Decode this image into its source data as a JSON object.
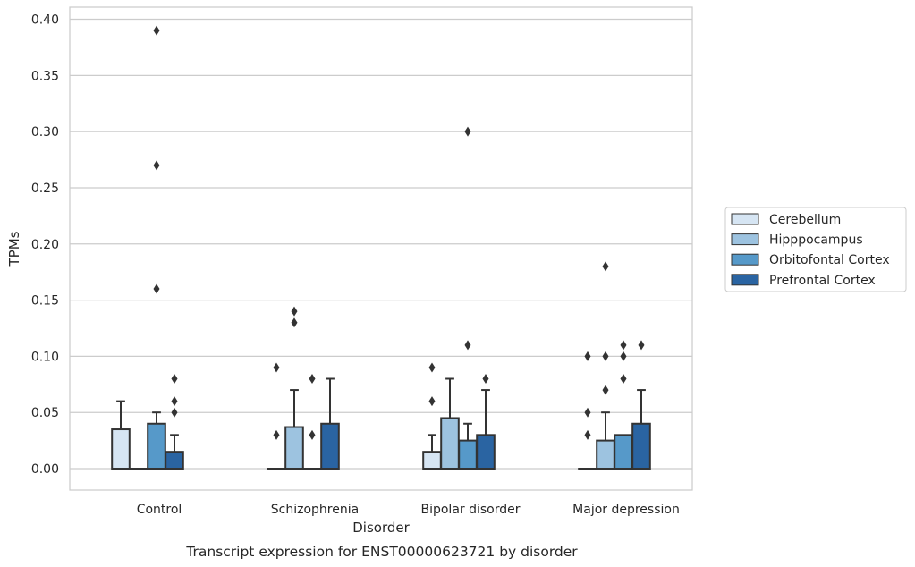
{
  "chart_data": {
    "type": "box",
    "title": "",
    "caption": "Transcript expression for ENST00000623721 by disorder",
    "xlabel": "Disorder",
    "ylabel": "TPMs",
    "ylim": [
      -0.019,
      0.408
    ],
    "yticks": [
      "0.00",
      "0.05",
      "0.10",
      "0.15",
      "0.20",
      "0.25",
      "0.30",
      "0.35",
      "0.40"
    ],
    "ytick_values": [
      0,
      0.05,
      0.1,
      0.15,
      0.2,
      0.25,
      0.3,
      0.35,
      0.4
    ],
    "grid": true,
    "legend_position": "right",
    "categories": [
      "Control",
      "Schizophrenia",
      "Bipolar disorder",
      "Major depression"
    ],
    "series": [
      {
        "name": "Cerebellum",
        "color": "#d6e5f3",
        "boxes": [
          {
            "q1": 0,
            "median": 0,
            "q3": 0.035,
            "whisker_low": 0,
            "whisker_high": 0.06,
            "outliers": []
          },
          {
            "q1": 0,
            "median": 0,
            "q3": 0,
            "whisker_low": 0,
            "whisker_high": 0,
            "outliers": [
              0.03,
              0.09
            ]
          },
          {
            "q1": 0,
            "median": 0,
            "q3": 0.015,
            "whisker_low": 0,
            "whisker_high": 0.03,
            "outliers": [
              0.06,
              0.09
            ]
          },
          {
            "q1": 0,
            "median": 0,
            "q3": 0,
            "whisker_low": 0,
            "whisker_high": 0,
            "outliers": [
              0.03,
              0.05,
              0.1
            ]
          }
        ]
      },
      {
        "name": "Hipppocampus",
        "color": "#9dc3e0",
        "boxes": [
          {
            "q1": 0,
            "median": 0,
            "q3": 0,
            "whisker_low": 0,
            "whisker_high": 0,
            "outliers": []
          },
          {
            "q1": 0,
            "median": 0,
            "q3": 0.037,
            "whisker_low": 0,
            "whisker_high": 0.07,
            "outliers": [
              0.13,
              0.14
            ]
          },
          {
            "q1": 0,
            "median": 0,
            "q3": 0.045,
            "whisker_low": 0,
            "whisker_high": 0.08,
            "outliers": []
          },
          {
            "q1": 0,
            "median": 0,
            "q3": 0.025,
            "whisker_low": 0,
            "whisker_high": 0.05,
            "outliers": [
              0.07,
              0.1,
              0.18
            ]
          }
        ]
      },
      {
        "name": "Orbitofontal Cortex",
        "color": "#5699c9",
        "boxes": [
          {
            "q1": 0,
            "median": 0,
            "q3": 0.04,
            "whisker_low": 0,
            "whisker_high": 0.05,
            "outliers": [
              0.16,
              0.27,
              0.39
            ]
          },
          {
            "q1": 0,
            "median": 0,
            "q3": 0,
            "whisker_low": 0,
            "whisker_high": 0,
            "outliers": [
              0.03,
              0.08
            ]
          },
          {
            "q1": 0,
            "median": 0,
            "q3": 0.025,
            "whisker_low": 0,
            "whisker_high": 0.04,
            "outliers": [
              0.11,
              0.3
            ]
          },
          {
            "q1": 0,
            "median": 0,
            "q3": 0.03,
            "whisker_low": 0,
            "whisker_high": 0.03,
            "outliers": [
              0.08,
              0.1,
              0.11
            ]
          }
        ]
      },
      {
        "name": "Prefrontal Cortex",
        "color": "#2a64a2",
        "boxes": [
          {
            "q1": 0,
            "median": 0,
            "q3": 0.015,
            "whisker_low": 0,
            "whisker_high": 0.03,
            "outliers": [
              0.05,
              0.06,
              0.08
            ]
          },
          {
            "q1": 0,
            "median": 0,
            "q3": 0.04,
            "whisker_low": 0,
            "whisker_high": 0.08,
            "outliers": []
          },
          {
            "q1": 0,
            "median": 0,
            "q3": 0.03,
            "whisker_low": 0,
            "whisker_high": 0.07,
            "outliers": [
              0.08
            ]
          },
          {
            "q1": 0,
            "median": 0,
            "q3": 0.04,
            "whisker_low": 0,
            "whisker_high": 0.07,
            "outliers": [
              0.11
            ]
          }
        ]
      }
    ]
  }
}
